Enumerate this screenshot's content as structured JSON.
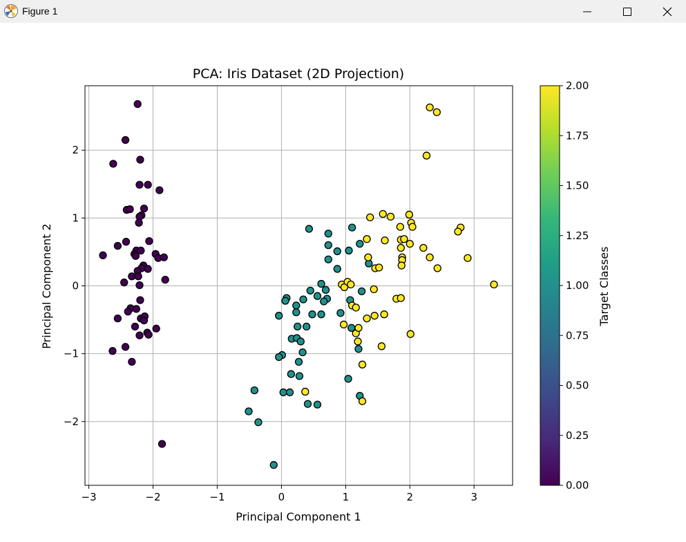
{
  "window": {
    "title": "Figure 1",
    "icon": "matplotlib-figure-icon",
    "controls": [
      "minimize-icon",
      "maximize-icon",
      "close-icon"
    ]
  },
  "chart_data": {
    "type": "scatter",
    "title": "PCA: Iris Dataset (2D Projection)",
    "xlabel": "Principal Component 1",
    "ylabel": "Principal Component 2",
    "xlim": [
      -3.06,
      3.6
    ],
    "ylim": [
      -2.94,
      2.95
    ],
    "xticks": [
      -3,
      -2,
      -1,
      0,
      1,
      2,
      3
    ],
    "xtick_labels": [
      "−3",
      "−2",
      "−1",
      "0",
      "1",
      "2",
      "3"
    ],
    "yticks": [
      -2,
      -1,
      0,
      1,
      2
    ],
    "ytick_labels": [
      "−2",
      "−1",
      "0",
      "1",
      "2"
    ],
    "grid": true,
    "marker_edge_color": "#000000",
    "colorbar": {
      "label": "Target Classes",
      "colormap": "viridis",
      "range": [
        0,
        2
      ],
      "ticks": [
        0,
        0.25,
        0.5,
        0.75,
        1,
        1.25,
        1.5,
        1.75,
        2
      ],
      "tick_labels": [
        "0.00",
        "0.25",
        "0.50",
        "0.75",
        "1.00",
        "1.25",
        "1.50",
        "1.75",
        "2.00"
      ],
      "stops": [
        "#440154",
        "#482878",
        "#3e4989",
        "#31688e",
        "#26828e",
        "#1f9e89",
        "#35b779",
        "#6ece58",
        "#b5de2b",
        "#fde725"
      ]
    },
    "series": [
      {
        "value": 0,
        "color": "#440154",
        "points": [
          [
            -2.24,
            2.68
          ],
          [
            -2.43,
            2.15
          ],
          [
            -2.62,
            1.8
          ],
          [
            -2.2,
            1.86
          ],
          [
            -2.21,
            1.49
          ],
          [
            -2.08,
            1.49
          ],
          [
            -1.9,
            1.41
          ],
          [
            -2.41,
            1.12
          ],
          [
            -2.36,
            1.13
          ],
          [
            -2.14,
            1.14
          ],
          [
            -2.18,
            1.04
          ],
          [
            -2.21,
            1.02
          ],
          [
            -2.22,
            0.93
          ],
          [
            -2.55,
            0.59
          ],
          [
            -2.42,
            0.65
          ],
          [
            -2.06,
            0.66
          ],
          [
            -2.78,
            0.45
          ],
          [
            -2.26,
            0.52
          ],
          [
            -2.19,
            0.52
          ],
          [
            -2.29,
            0.47
          ],
          [
            -2.27,
            0.44
          ],
          [
            -1.96,
            0.47
          ],
          [
            -1.92,
            0.41
          ],
          [
            -1.83,
            0.42
          ],
          [
            -2.15,
            0.3
          ],
          [
            -2.18,
            0.26
          ],
          [
            -2.24,
            0.22
          ],
          [
            -2.08,
            0.25
          ],
          [
            -2.33,
            0.14
          ],
          [
            -2.23,
            0.14
          ],
          [
            -2.21,
            0.01
          ],
          [
            -2.45,
            0.05
          ],
          [
            -1.81,
            0.09
          ],
          [
            -2.2,
            -0.21
          ],
          [
            -2.35,
            -0.33
          ],
          [
            -2.26,
            -0.34
          ],
          [
            -2.39,
            -0.38
          ],
          [
            -2.55,
            -0.48
          ],
          [
            -2.19,
            -0.48
          ],
          [
            -2.13,
            -0.45
          ],
          [
            -2.14,
            -0.51
          ],
          [
            -2.28,
            -0.6
          ],
          [
            -1.95,
            -0.63
          ],
          [
            -2.09,
            -0.69
          ],
          [
            -2.21,
            -0.73
          ],
          [
            -2.07,
            -0.72
          ],
          [
            -2.43,
            -0.9
          ],
          [
            -2.63,
            -0.96
          ],
          [
            -2.33,
            -1.12
          ],
          [
            -1.86,
            -2.33
          ]
        ]
      },
      {
        "value": 1,
        "color": "#21918c",
        "points": [
          [
            0.43,
            0.84
          ],
          [
            1.1,
            0.86
          ],
          [
            0.73,
            0.77
          ],
          [
            1.22,
            0.62
          ],
          [
            0.73,
            0.6
          ],
          [
            0.87,
            0.51
          ],
          [
            1.05,
            0.52
          ],
          [
            0.73,
            0.39
          ],
          [
            1.36,
            0.33
          ],
          [
            0.87,
            0.25
          ],
          [
            0.62,
            0.03
          ],
          [
            0.69,
            -0.06
          ],
          [
            0.45,
            -0.07
          ],
          [
            0.56,
            -0.15
          ],
          [
            0.08,
            -0.18
          ],
          [
            0.06,
            -0.22
          ],
          [
            0.71,
            -0.19
          ],
          [
            0.66,
            -0.23
          ],
          [
            1.07,
            -0.21
          ],
          [
            1.25,
            -0.08
          ],
          [
            0.34,
            -0.2
          ],
          [
            0.23,
            -0.29
          ],
          [
            0.23,
            -0.39
          ],
          [
            0.48,
            -0.42
          ],
          [
            0.62,
            -0.42
          ],
          [
            -0.04,
            -0.44
          ],
          [
            0.25,
            -0.6
          ],
          [
            0.39,
            -0.6
          ],
          [
            1.09,
            -0.62
          ],
          [
            0.16,
            -0.78
          ],
          [
            0.24,
            -0.77
          ],
          [
            0.3,
            -0.82
          ],
          [
            1.2,
            -0.93
          ],
          [
            0.33,
            -0.98
          ],
          [
            0.01,
            -1.02
          ],
          [
            -0.04,
            -1.05
          ],
          [
            0.27,
            -1.12
          ],
          [
            0.15,
            -1.3
          ],
          [
            0.28,
            -1.33
          ],
          [
            1.04,
            -1.37
          ],
          [
            -0.42,
            -1.54
          ],
          [
            0.03,
            -1.57
          ],
          [
            0.13,
            -1.57
          ],
          [
            1.22,
            -1.62
          ],
          [
            -0.51,
            -1.85
          ],
          [
            0.41,
            -1.74
          ],
          [
            0.56,
            -1.75
          ],
          [
            -0.36,
            -2.01
          ],
          [
            -0.12,
            -2.64
          ],
          [
            0.92,
            -0.4
          ]
        ]
      },
      {
        "value": 2,
        "color": "#fde725",
        "points": [
          [
            2.31,
            2.63
          ],
          [
            2.42,
            2.56
          ],
          [
            2.26,
            1.92
          ],
          [
            1.58,
            1.06
          ],
          [
            1.99,
            1.05
          ],
          [
            1.38,
            1.01
          ],
          [
            1.7,
            1.02
          ],
          [
            2.02,
            0.93
          ],
          [
            2.04,
            0.87
          ],
          [
            1.85,
            0.87
          ],
          [
            2.79,
            0.86
          ],
          [
            2.75,
            0.8
          ],
          [
            1.33,
            0.69
          ],
          [
            1.61,
            0.67
          ],
          [
            1.86,
            0.68
          ],
          [
            1.91,
            0.69
          ],
          [
            2.0,
            0.62
          ],
          [
            1.86,
            0.56
          ],
          [
            2.21,
            0.56
          ],
          [
            1.35,
            0.42
          ],
          [
            1.88,
            0.42
          ],
          [
            1.88,
            0.38
          ],
          [
            2.31,
            0.42
          ],
          [
            2.9,
            0.41
          ],
          [
            1.87,
            0.3
          ],
          [
            1.46,
            0.26
          ],
          [
            1.52,
            0.27
          ],
          [
            2.43,
            0.26
          ],
          [
            0.94,
            0.02
          ],
          [
            0.98,
            -0.02
          ],
          [
            1.03,
            0.06
          ],
          [
            1.44,
            -0.05
          ],
          [
            3.31,
            0.02
          ],
          [
            1.79,
            -0.19
          ],
          [
            1.86,
            -0.18
          ],
          [
            1.1,
            -0.29
          ],
          [
            1.16,
            -0.32
          ],
          [
            1.33,
            -0.48
          ],
          [
            1.45,
            -0.44
          ],
          [
            1.6,
            -0.42
          ],
          [
            0.97,
            -0.57
          ],
          [
            1.16,
            -0.7
          ],
          [
            1.19,
            -0.82
          ],
          [
            2.01,
            -0.71
          ],
          [
            1.56,
            -0.89
          ],
          [
            1.26,
            -1.16
          ],
          [
            0.37,
            -1.56
          ],
          [
            1.26,
            -1.7
          ],
          [
            1.08,
            0.02
          ],
          [
            1.2,
            -0.62
          ]
        ]
      }
    ]
  }
}
